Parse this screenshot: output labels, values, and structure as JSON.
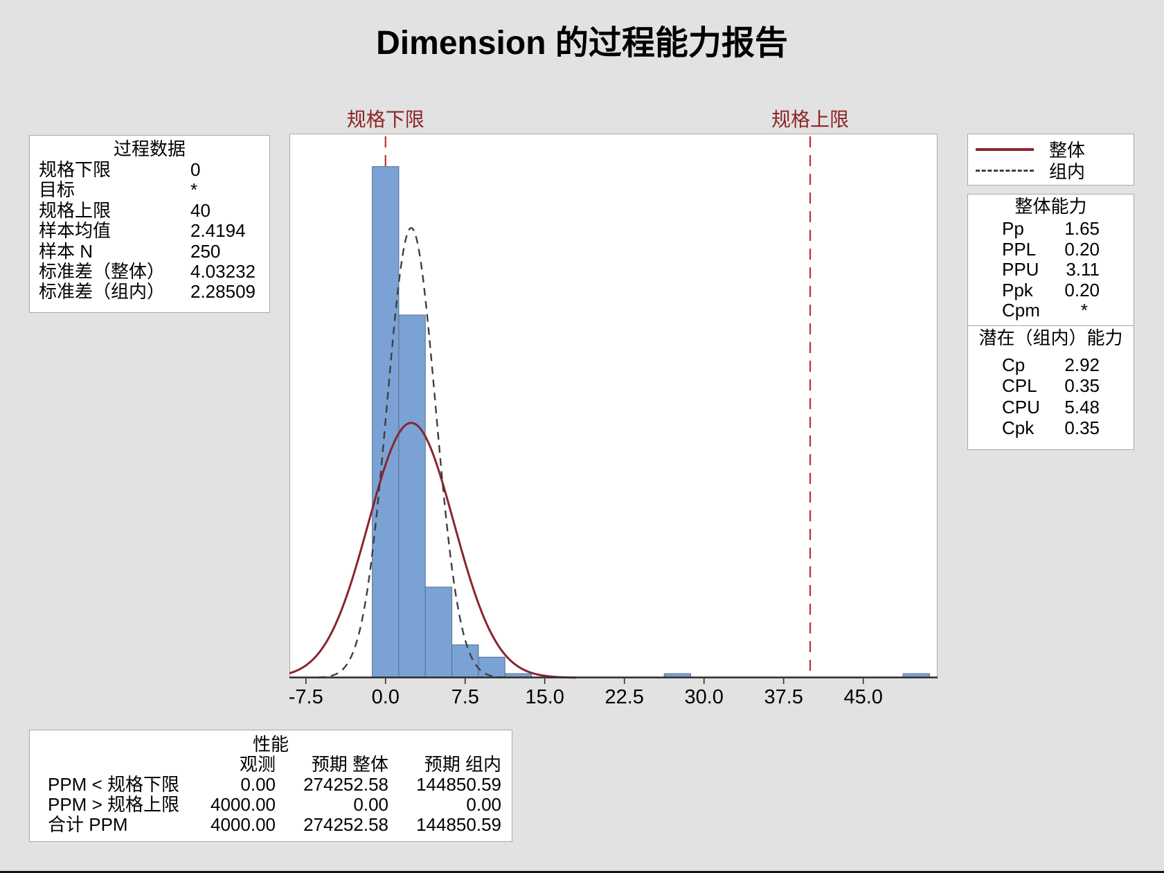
{
  "title": "Dimension 的过程能力报告",
  "colors": {
    "background": "#e2e2e2",
    "panel_border": "#a8a8a8",
    "bar_fill": "#7ba2d4",
    "bar_stroke": "#55708c",
    "overall_curve": "#8b2331",
    "within_curve": "#3f3f3f",
    "spec_line": "#bf2f2f",
    "spec_label": "#8b2424",
    "axis_line": "#2f2f2f"
  },
  "process_data": {
    "title": "过程数据",
    "rows": [
      {
        "label": "规格下限",
        "value": "0"
      },
      {
        "label": "目标",
        "value": "*"
      },
      {
        "label": "规格上限",
        "value": "40"
      },
      {
        "label": "样本均值",
        "value": "2.4194"
      },
      {
        "label": "样本 N",
        "value": "250"
      },
      {
        "label": "标准差（整体）",
        "value": "4.03232"
      },
      {
        "label": "标准差（组内）",
        "value": "2.28509"
      }
    ]
  },
  "spec_limits": {
    "lsl_label": "规格下限",
    "usl_label": "规格上限",
    "lsl": 0,
    "usl": 40
  },
  "legend": {
    "overall_label": "整体",
    "within_label": "组内"
  },
  "overall_capability": {
    "title": "整体能力",
    "rows": [
      {
        "label": "Pp",
        "value": "1.65"
      },
      {
        "label": "PPL",
        "value": "0.20"
      },
      {
        "label": "PPU",
        "value": "3.11"
      },
      {
        "label": "Ppk",
        "value": "0.20"
      },
      {
        "label": "Cpm",
        "value": "*"
      }
    ]
  },
  "within_capability": {
    "title": "潜在（组内）能力",
    "rows": [
      {
        "label": "Cp",
        "value": "2.92"
      },
      {
        "label": "CPL",
        "value": "0.35"
      },
      {
        "label": "CPU",
        "value": "5.48"
      },
      {
        "label": "Cpk",
        "value": "0.35"
      }
    ]
  },
  "performance": {
    "title": "性能",
    "columns": [
      "观测",
      "预期 整体",
      "预期 组内"
    ],
    "rows": [
      {
        "label": "PPM < 规格下限",
        "values": [
          "0.00",
          "274252.58",
          "144850.59"
        ]
      },
      {
        "label": "PPM > 规格上限",
        "values": [
          "4000.00",
          "0.00",
          "0.00"
        ]
      },
      {
        "label": "合计 PPM",
        "values": [
          "4000.00",
          "274252.58",
          "144850.59"
        ]
      }
    ]
  },
  "chart_data": {
    "type": "histogram",
    "title": "Dimension 的过程能力报告",
    "x_range": [
      -9.05,
      52.0
    ],
    "ylim_counts": [
      0,
      132
    ],
    "x_ticks": [
      -7.5,
      0,
      7.5,
      15,
      22.5,
      30,
      37.5,
      45
    ],
    "x_tick_labels": [
      "-7.5",
      "0.0",
      "7.5",
      "15.0",
      "22.5",
      "30.0",
      "37.5",
      "45.0"
    ],
    "bin_width": 2.5,
    "bins": [
      {
        "center": 0,
        "freq": 124
      },
      {
        "center": 2.5,
        "freq": 88
      },
      {
        "center": 5,
        "freq": 22
      },
      {
        "center": 7.5,
        "freq": 8
      },
      {
        "center": 10,
        "freq": 5
      },
      {
        "center": 12.5,
        "freq": 1
      },
      {
        "center": 27.5,
        "freq": 1
      },
      {
        "center": 50,
        "freq": 1
      }
    ],
    "sample_n": 250,
    "mean": 2.4194,
    "curves": [
      {
        "name": "整体",
        "sigma": 4.03232,
        "style": "solid"
      },
      {
        "name": "组内",
        "sigma": 2.28509,
        "style": "dashed"
      }
    ],
    "spec_lines": [
      0,
      40
    ],
    "legend_position": "top-right",
    "grid": false
  }
}
